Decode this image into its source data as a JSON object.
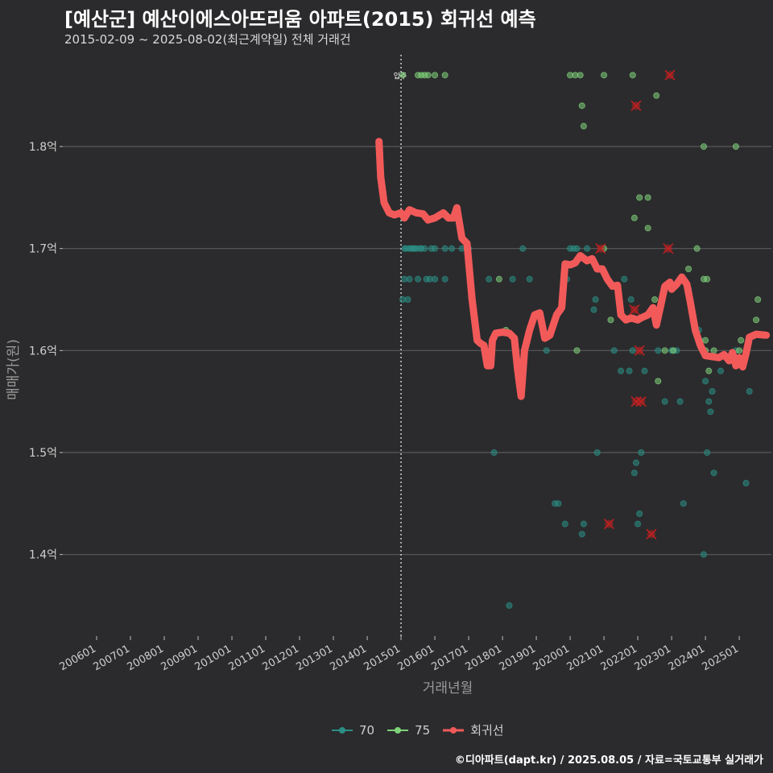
{
  "title": "[예산군] 예산이에스아뜨리움 아파트(2015) 회귀선 예측",
  "subtitle": "2015-02-09 ~ 2025-08-02(최근계약일) 전체 거래건",
  "caption": "©디아파트(dapt.kr) / 2025.08.05 / 자료=국토교통부 실거래가",
  "colors": {
    "background": "#2b2b2d",
    "grid": "#5a5a5c",
    "s70": "#2a8f85",
    "s75": "#7fd17a",
    "reg": "#f25a5a",
    "marker": "#c02020",
    "text": "#cfcfcf"
  },
  "chart_data": {
    "type": "scatter",
    "xlabel": "거래년월",
    "ylabel": "매매가(원)",
    "ylim": [
      1.32,
      1.89
    ],
    "yticks": [
      1.4,
      1.5,
      1.6,
      1.7,
      1.8
    ],
    "ytick_labels": [
      "1.4억",
      "1.5억",
      "1.6억",
      "1.7억",
      "1.8억"
    ],
    "xlim": [
      2005.0,
      2025.95
    ],
    "xticks": [
      2006,
      2007,
      2008,
      2009,
      2010,
      2011,
      2012,
      2013,
      2014,
      2015,
      2016,
      2017,
      2018,
      2019,
      2020,
      2021,
      2022,
      2023,
      2024,
      2025
    ],
    "xtick_labels": [
      "200601",
      "200701",
      "200801",
      "200901",
      "201001",
      "201101",
      "201201",
      "201301",
      "201401",
      "201501",
      "201601",
      "201701",
      "201801",
      "201901",
      "202001",
      "202101",
      "202201",
      "202301",
      "202401",
      "202501"
    ],
    "vline": {
      "x": 2015.0,
      "label": "입주"
    },
    "legend": [
      {
        "name": "70",
        "kind": "scatter"
      },
      {
        "name": "75",
        "kind": "scatter"
      },
      {
        "name": "회귀선",
        "kind": "line"
      }
    ],
    "series": [
      {
        "name": "70",
        "points": [
          [
            2015.05,
            1.65
          ],
          [
            2015.2,
            1.65
          ],
          [
            2015.1,
            1.7
          ],
          [
            2015.15,
            1.7
          ],
          [
            2015.25,
            1.7
          ],
          [
            2015.3,
            1.7
          ],
          [
            2015.35,
            1.7
          ],
          [
            2015.4,
            1.7
          ],
          [
            2015.45,
            1.7
          ],
          [
            2015.55,
            1.7
          ],
          [
            2015.6,
            1.7
          ],
          [
            2015.7,
            1.7
          ],
          [
            2015.9,
            1.7
          ],
          [
            2016.0,
            1.7
          ],
          [
            2016.3,
            1.7
          ],
          [
            2016.5,
            1.7
          ],
          [
            2016.8,
            1.7
          ],
          [
            2015.1,
            1.67
          ],
          [
            2015.25,
            1.67
          ],
          [
            2015.5,
            1.67
          ],
          [
            2015.75,
            1.67
          ],
          [
            2015.85,
            1.67
          ],
          [
            2016.0,
            1.67
          ],
          [
            2016.3,
            1.67
          ],
          [
            2017.0,
            1.7
          ],
          [
            2017.6,
            1.67
          ],
          [
            2017.75,
            1.5
          ],
          [
            2018.2,
            1.35
          ],
          [
            2018.3,
            1.67
          ],
          [
            2018.6,
            1.7
          ],
          [
            2018.8,
            1.67
          ],
          [
            2019.3,
            1.6
          ],
          [
            2019.55,
            1.45
          ],
          [
            2019.65,
            1.45
          ],
          [
            2019.85,
            1.43
          ],
          [
            2019.9,
            1.67
          ],
          [
            2020.0,
            1.7
          ],
          [
            2020.1,
            1.7
          ],
          [
            2020.2,
            1.7
          ],
          [
            2020.35,
            1.42
          ],
          [
            2020.4,
            1.43
          ],
          [
            2020.5,
            1.7
          ],
          [
            2020.7,
            1.64
          ],
          [
            2020.75,
            1.65
          ],
          [
            2020.8,
            1.5
          ],
          [
            2021.3,
            1.6
          ],
          [
            2021.5,
            1.58
          ],
          [
            2021.75,
            1.58
          ],
          [
            2021.85,
            1.6
          ],
          [
            2021.9,
            1.48
          ],
          [
            2021.95,
            1.49
          ],
          [
            2022.0,
            1.43
          ],
          [
            2022.05,
            1.44
          ],
          [
            2022.1,
            1.5
          ],
          [
            2022.2,
            1.58
          ],
          [
            2022.6,
            1.6
          ],
          [
            2022.8,
            1.55
          ],
          [
            2023.0,
            1.6
          ],
          [
            2023.15,
            1.6
          ],
          [
            2023.25,
            1.55
          ],
          [
            2023.35,
            1.45
          ],
          [
            2023.5,
            1.66
          ],
          [
            2023.8,
            1.62
          ],
          [
            2023.85,
            1.61
          ],
          [
            2023.95,
            1.4
          ],
          [
            2024.0,
            1.57
          ],
          [
            2024.05,
            1.5
          ],
          [
            2024.1,
            1.55
          ],
          [
            2024.15,
            1.54
          ],
          [
            2024.2,
            1.56
          ],
          [
            2024.25,
            1.48
          ],
          [
            2024.45,
            1.58
          ],
          [
            2024.7,
            1.59
          ],
          [
            2024.9,
            1.6
          ],
          [
            2025.2,
            1.47
          ],
          [
            2025.3,
            1.56
          ],
          [
            2021.8,
            1.65
          ],
          [
            2021.6,
            1.67
          ]
        ]
      },
      {
        "name": "75",
        "points": [
          [
            2015.05,
            1.87
          ],
          [
            2015.5,
            1.87
          ],
          [
            2015.6,
            1.87
          ],
          [
            2015.7,
            1.87
          ],
          [
            2015.8,
            1.87
          ],
          [
            2016.0,
            1.87
          ],
          [
            2016.3,
            1.87
          ],
          [
            2020.0,
            1.87
          ],
          [
            2020.15,
            1.87
          ],
          [
            2020.3,
            1.87
          ],
          [
            2020.35,
            1.84
          ],
          [
            2020.4,
            1.82
          ],
          [
            2021.0,
            1.87
          ],
          [
            2021.85,
            1.87
          ],
          [
            2022.55,
            1.85
          ],
          [
            2021.9,
            1.73
          ],
          [
            2022.05,
            1.75
          ],
          [
            2022.3,
            1.75
          ],
          [
            2022.3,
            1.72
          ],
          [
            2022.5,
            1.65
          ],
          [
            2022.6,
            1.57
          ],
          [
            2022.8,
            1.6
          ],
          [
            2023.05,
            1.6
          ],
          [
            2023.5,
            1.68
          ],
          [
            2023.75,
            1.7
          ],
          [
            2024.0,
            1.6
          ],
          [
            2024.0,
            1.61
          ],
          [
            2023.95,
            1.67
          ],
          [
            2024.05,
            1.67
          ],
          [
            2024.1,
            1.58
          ],
          [
            2024.25,
            1.6
          ],
          [
            2025.0,
            1.6
          ],
          [
            2025.05,
            1.61
          ],
          [
            2025.5,
            1.63
          ],
          [
            2025.55,
            1.65
          ],
          [
            2020.2,
            1.6
          ],
          [
            2021.0,
            1.7
          ],
          [
            2021.2,
            1.63
          ],
          [
            2017.9,
            1.67
          ],
          [
            2018.1,
            1.62
          ],
          [
            2024.9,
            1.8
          ],
          [
            2023.95,
            1.8
          ]
        ]
      },
      {
        "name": "회귀선",
        "points": [
          [
            2014.35,
            1.805
          ],
          [
            2014.4,
            1.77
          ],
          [
            2014.5,
            1.745
          ],
          [
            2014.65,
            1.735
          ],
          [
            2014.8,
            1.733
          ],
          [
            2015.0,
            1.735
          ],
          [
            2015.1,
            1.73
          ],
          [
            2015.25,
            1.738
          ],
          [
            2015.45,
            1.735
          ],
          [
            2015.65,
            1.734
          ],
          [
            2015.8,
            1.728
          ],
          [
            2016.0,
            1.73
          ],
          [
            2016.25,
            1.735
          ],
          [
            2016.4,
            1.73
          ],
          [
            2016.55,
            1.73
          ],
          [
            2016.65,
            1.74
          ],
          [
            2016.8,
            1.71
          ],
          [
            2016.95,
            1.705
          ],
          [
            2017.1,
            1.65
          ],
          [
            2017.25,
            1.61
          ],
          [
            2017.35,
            1.607
          ],
          [
            2017.45,
            1.605
          ],
          [
            2017.55,
            1.585
          ],
          [
            2017.65,
            1.585
          ],
          [
            2017.7,
            1.61
          ],
          [
            2017.8,
            1.617
          ],
          [
            2018.0,
            1.618
          ],
          [
            2018.2,
            1.617
          ],
          [
            2018.35,
            1.612
          ],
          [
            2018.45,
            1.58
          ],
          [
            2018.55,
            1.555
          ],
          [
            2018.65,
            1.6
          ],
          [
            2018.8,
            1.62
          ],
          [
            2018.95,
            1.635
          ],
          [
            2019.1,
            1.637
          ],
          [
            2019.25,
            1.612
          ],
          [
            2019.4,
            1.615
          ],
          [
            2019.6,
            1.635
          ],
          [
            2019.75,
            1.642
          ],
          [
            2019.85,
            1.685
          ],
          [
            2020.0,
            1.684
          ],
          [
            2020.15,
            1.686
          ],
          [
            2020.3,
            1.693
          ],
          [
            2020.5,
            1.688
          ],
          [
            2020.65,
            1.69
          ],
          [
            2020.8,
            1.68
          ],
          [
            2020.95,
            1.68
          ],
          [
            2021.1,
            1.67
          ],
          [
            2021.25,
            1.663
          ],
          [
            2021.4,
            1.664
          ],
          [
            2021.5,
            1.635
          ],
          [
            2021.65,
            1.63
          ],
          [
            2021.8,
            1.632
          ],
          [
            2022.0,
            1.63
          ],
          [
            2022.1,
            1.632
          ],
          [
            2022.3,
            1.635
          ],
          [
            2022.45,
            1.642
          ],
          [
            2022.55,
            1.625
          ],
          [
            2022.65,
            1.64
          ],
          [
            2022.8,
            1.663
          ],
          [
            2022.95,
            1.667
          ],
          [
            2023.0,
            1.66
          ],
          [
            2023.15,
            1.665
          ],
          [
            2023.3,
            1.672
          ],
          [
            2023.45,
            1.665
          ],
          [
            2023.55,
            1.648
          ],
          [
            2023.7,
            1.62
          ],
          [
            2023.85,
            1.605
          ],
          [
            2024.0,
            1.595
          ],
          [
            2024.2,
            1.594
          ],
          [
            2024.4,
            1.593
          ],
          [
            2024.55,
            1.596
          ],
          [
            2024.7,
            1.59
          ],
          [
            2024.8,
            1.598
          ],
          [
            2024.9,
            1.585
          ],
          [
            2025.0,
            1.593
          ],
          [
            2025.1,
            1.584
          ],
          [
            2025.2,
            1.597
          ],
          [
            2025.3,
            1.613
          ],
          [
            2025.5,
            1.616
          ],
          [
            2025.8,
            1.615
          ]
        ]
      }
    ],
    "outliers": [
      [
        2021.95,
        1.84
      ],
      [
        2022.95,
        1.87
      ],
      [
        2020.9,
        1.7
      ],
      [
        2022.9,
        1.7
      ],
      [
        2021.9,
        1.64
      ],
      [
        2022.05,
        1.6
      ],
      [
        2021.95,
        1.55
      ],
      [
        2022.1,
        1.55
      ],
      [
        2021.15,
        1.43
      ],
      [
        2022.4,
        1.42
      ]
    ]
  }
}
